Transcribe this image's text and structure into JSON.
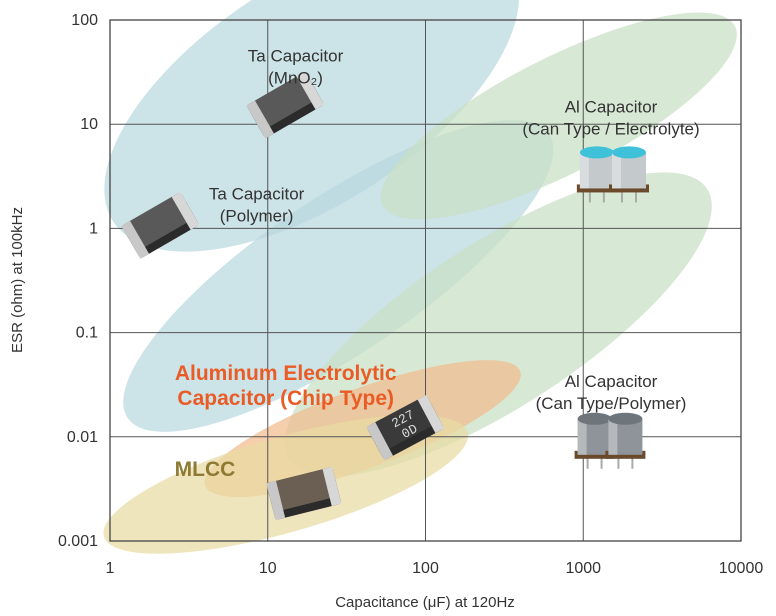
{
  "chart_data": {
    "type": "scatter",
    "xlabel": "Capacitance (μF) at 120Hz",
    "ylabel": "ESR (ohm) at 100kHz",
    "x_scale": "log",
    "y_scale": "log",
    "xlim": [
      1,
      10000
    ],
    "ylim": [
      0.001,
      100
    ],
    "x_ticks": [
      {
        "value": 1,
        "label": "1"
      },
      {
        "value": 10,
        "label": "10"
      },
      {
        "value": 100,
        "label": "100"
      },
      {
        "value": 1000,
        "label": "1000"
      },
      {
        "value": 10000,
        "label": "10000"
      }
    ],
    "y_ticks": [
      {
        "value": 0.001,
        "label": "0.001"
      },
      {
        "value": 0.01,
        "label": "0.01"
      },
      {
        "value": 0.1,
        "label": "0.1"
      },
      {
        "value": 1,
        "label": "1"
      },
      {
        "value": 10,
        "label": "10"
      },
      {
        "value": 100,
        "label": "100"
      }
    ],
    "grid": true,
    "regions": [
      {
        "id": "ta-mno2",
        "lines": [
          "Ta Capacitor",
          "(MnO₂)"
        ],
        "label_at": [
          15,
          40
        ],
        "label_style": "normal",
        "fill": "#b9d8df",
        "ellipse": {
          "center": [
            19,
            20
          ],
          "span_x": [
            0.6,
            600
          ],
          "span_y": [
            0.035,
            1000
          ],
          "angle": -33
        }
      },
      {
        "id": "ta-polymer",
        "lines": [
          "Ta Capacitor",
          "(Polymer)"
        ],
        "label_at": [
          8.5,
          1.9
        ],
        "label_style": "normal",
        "fill": "#b9d8df",
        "ellipse": {
          "center": [
            28,
            0.35
          ],
          "span_x": [
            0.6,
            1000
          ],
          "span_y": [
            0.009,
            12
          ],
          "angle": -34
        }
      },
      {
        "id": "al-can-electrolyte",
        "lines": [
          "Al Capacitor",
          "(Can Type / Electrolyte)"
        ],
        "label_at": [
          1500,
          13
        ],
        "label_style": "normal",
        "fill": "#c8e0c4",
        "ellipse": {
          "center": [
            700,
            12
          ],
          "span_x": [
            25,
            8000
          ],
          "span_y": [
            0.8,
            170
          ],
          "angle": -27
        }
      },
      {
        "id": "al-can-polymer",
        "lines": [
          "Al Capacitor",
          "(Can Type/Polymer)"
        ],
        "label_at": [
          1500,
          0.03
        ],
        "label_style": "normal",
        "fill": "#c8e0c4",
        "ellipse": {
          "center": [
            290,
            0.12
          ],
          "span_x": [
            2.8,
            4000
          ],
          "span_y": [
            0.004,
            8
          ],
          "angle": -33
        }
      },
      {
        "id": "al-chip",
        "lines": [
          "Aluminum Electrolytic",
          "Capacitor (Chip Type)"
        ],
        "label_at": [
          13,
          0.035
        ],
        "label_style": "orange",
        "fill": "#f1bb8d",
        "ellipse": {
          "center": [
            40,
            0.012
          ],
          "span_x": [
            3,
            400
          ],
          "span_y": [
            0.002,
            0.08
          ],
          "angle": -20
        }
      },
      {
        "id": "mlcc",
        "lines": [
          "MLCC"
        ],
        "label_at": [
          4,
          0.0042
        ],
        "label_style": "olive",
        "fill": "#e9dba2",
        "ellipse": {
          "center": [
            13,
            0.0035
          ],
          "span_x": [
            1,
            250
          ],
          "span_y": [
            0.0003,
            0.025
          ],
          "angle": -16
        }
      }
    ],
    "components": [
      {
        "id": "ta-mno2-chip",
        "kind": "chip",
        "x": 13,
        "y": 15,
        "color": "#595959",
        "angle": -30
      },
      {
        "id": "ta-polymer-chip",
        "kind": "chip",
        "x": 2.1,
        "y": 1.05,
        "color": "#595959",
        "angle": -30
      },
      {
        "id": "al-chip-part",
        "kind": "chip",
        "x": 75,
        "y": 0.012,
        "color": "#3a3a3a",
        "angle": -28,
        "marking": [
          "227",
          "0D"
        ]
      },
      {
        "id": "mlcc-chip",
        "kind": "chip",
        "x": 17,
        "y": 0.0028,
        "color": "#6b5f54",
        "angle": -14
      },
      {
        "id": "al-can-1",
        "kind": "can",
        "x": 1220,
        "y": 3.6,
        "color": "#c4c9cc",
        "top_color": "#3ec1d9"
      },
      {
        "id": "al-can-2",
        "kind": "can",
        "x": 1950,
        "y": 3.6,
        "color": "#c4c9cc",
        "top_color": "#3ec1d9"
      },
      {
        "id": "al-can-3",
        "kind": "can",
        "x": 1180,
        "y": 0.01,
        "color": "#8e9499",
        "top_color": "#6f767b"
      },
      {
        "id": "al-can-4",
        "kind": "can",
        "x": 1850,
        "y": 0.01,
        "color": "#8e9499",
        "top_color": "#6f767b"
      }
    ]
  }
}
